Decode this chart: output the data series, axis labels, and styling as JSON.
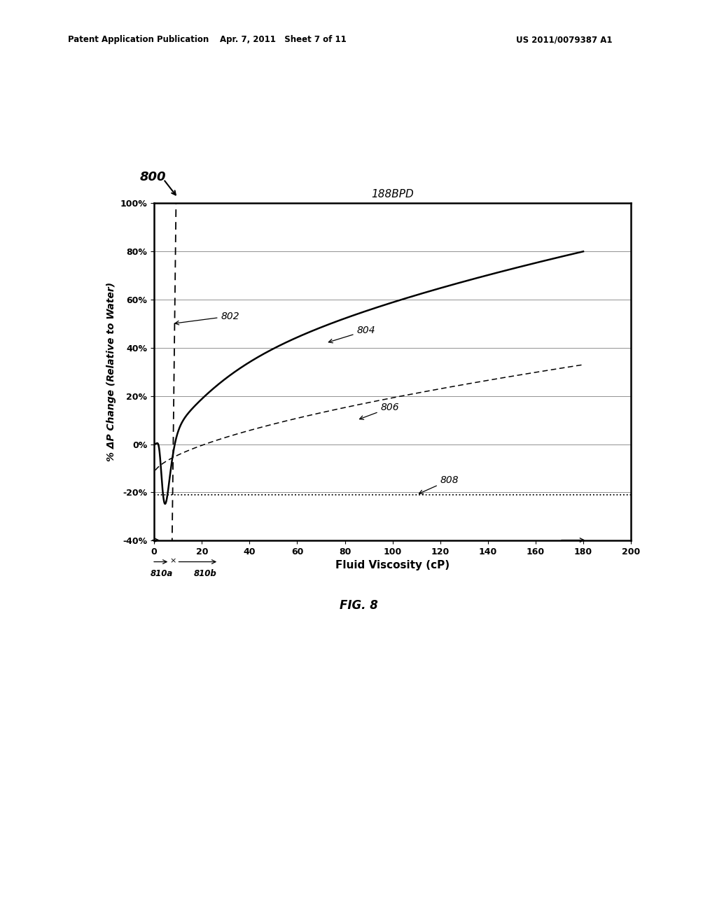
{
  "title": "188BPD",
  "xlabel": "Fluid Viscosity (cP)",
  "ylabel": "% ΔP Change (Relative to Water)",
  "xlim": [
    0,
    200
  ],
  "ylim": [
    -40,
    100
  ],
  "yticks": [
    -40,
    -20,
    0,
    20,
    40,
    60,
    80,
    100
  ],
  "ytick_labels": [
    "-40%",
    "-20%",
    "0%",
    "20%",
    "40%",
    "60%",
    "80%",
    "100%"
  ],
  "xticks": [
    0,
    20,
    40,
    60,
    80,
    100,
    120,
    140,
    160,
    180,
    200
  ],
  "header_left": "Patent Application Publication",
  "header_mid": "Apr. 7, 2011   Sheet 7 of 11",
  "header_right": "US 2011/0079387 A1",
  "fig_label": "FIG. 8",
  "diagram_label": "800",
  "label_802": "802",
  "label_804": "804",
  "label_806": "806",
  "label_808": "808",
  "label_810a": "810a",
  "label_810b": "810b",
  "background_color": "#ffffff"
}
